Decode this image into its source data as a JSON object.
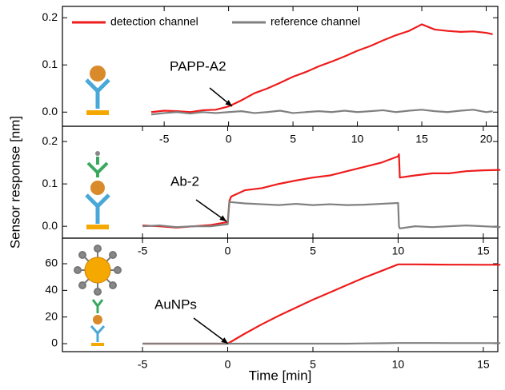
{
  "chart_data": [
    {
      "type": "line",
      "annotation": "PAPP-A2",
      "legend": "top",
      "x": [
        -6,
        -5,
        -4,
        -3,
        -2,
        -1,
        0,
        1,
        2,
        3,
        4,
        5,
        6,
        7,
        8,
        9,
        10,
        11,
        12,
        13,
        14,
        15,
        16,
        17,
        18,
        19,
        20,
        20.5
      ],
      "series": [
        {
          "name": "detection channel",
          "color": "#ee1c1c",
          "values": [
            0.0,
            0.003,
            0.002,
            0.0,
            0.004,
            0.005,
            0.012,
            0.025,
            0.04,
            0.05,
            0.062,
            0.075,
            0.085,
            0.097,
            0.107,
            0.118,
            0.13,
            0.14,
            0.152,
            0.163,
            0.172,
            0.186,
            0.175,
            0.172,
            0.17,
            0.171,
            0.168,
            0.165
          ]
        },
        {
          "name": "reference channel",
          "color": "#808080",
          "values": [
            -0.005,
            -0.002,
            0.0,
            -0.003,
            0.0,
            -0.002,
            0.0,
            0.002,
            -0.002,
            0.0,
            0.003,
            -0.002,
            0.0,
            0.002,
            0.0,
            0.003,
            0.0,
            0.002,
            0.004,
            0.0,
            0.003,
            0.005,
            0.002,
            0.0,
            0.003,
            0.005,
            0.0,
            0.002
          ]
        }
      ],
      "xlim": [
        -12.9,
        20.9
      ],
      "xticks": [
        -5,
        0,
        5,
        10,
        15,
        20
      ],
      "ylim": [
        -0.03,
        0.224
      ],
      "yticks": [
        {
          "value": 0,
          "label": "0.0"
        },
        0.1,
        0.2
      ]
    },
    {
      "type": "line",
      "annotation": "Ab-2",
      "ylabel": "Sensor response [nm]",
      "x": [
        -5,
        -4,
        -3,
        -2,
        -1,
        0,
        0.1,
        0.2,
        1,
        2,
        3,
        4,
        5,
        6,
        7,
        8,
        9,
        10,
        10.05,
        10.1,
        11,
        12,
        13,
        14,
        15,
        16
      ],
      "series": [
        {
          "color": "#ee1c1c",
          "values": [
            0.002,
            0.0,
            -0.003,
            0.0,
            0.003,
            0.01,
            0.06,
            0.07,
            0.085,
            0.09,
            0.1,
            0.108,
            0.115,
            0.12,
            0.13,
            0.14,
            0.15,
            0.165,
            0.17,
            0.115,
            0.12,
            0.125,
            0.125,
            0.13,
            0.132,
            0.133
          ]
        },
        {
          "color": "#808080",
          "values": [
            0.0,
            0.002,
            -0.002,
            0.0,
            0.0,
            0.005,
            0.058,
            0.057,
            0.054,
            0.052,
            0.05,
            0.053,
            0.05,
            0.052,
            0.05,
            0.051,
            0.053,
            0.055,
            0.0,
            -0.005,
            0.0,
            -0.002,
            0.0,
            0.002,
            0.0,
            -0.002
          ]
        }
      ],
      "xlim": [
        -9.7,
        15.85
      ],
      "xticks": [
        -5,
        0,
        5,
        10,
        15
      ],
      "ylim": [
        -0.028,
        0.236
      ],
      "yticks": [
        {
          "value": 0,
          "label": "0.0"
        },
        0.1,
        0.2
      ]
    },
    {
      "type": "line",
      "annotation": "AuNPs",
      "xlabel": "Time [min]",
      "x": [
        -5,
        0,
        1,
        2,
        3,
        4,
        5,
        6,
        7,
        8,
        9,
        10,
        11,
        12,
        13,
        14,
        15,
        16
      ],
      "series": [
        {
          "color": "#ee1c1c",
          "values": [
            0,
            0,
            7.5,
            14.5,
            21,
            27,
            33,
            38.5,
            44,
            49.5,
            54.5,
            59.5,
            59.5,
            59.4,
            59.3,
            59.3,
            59.2,
            59.2
          ]
        },
        {
          "color": "#808080",
          "values": [
            0,
            0,
            0,
            0,
            0,
            0,
            0,
            0,
            0,
            0.2,
            0.3,
            0.5,
            0.5,
            0.5,
            0.4,
            0.4,
            0.4,
            0.4
          ]
        }
      ],
      "xlim": [
        -9.7,
        15.85
      ],
      "xticks": [
        -5,
        0,
        5,
        10,
        15
      ],
      "ylim": [
        -6,
        79.2
      ],
      "yticks": [
        0,
        20,
        40,
        60
      ]
    }
  ]
}
